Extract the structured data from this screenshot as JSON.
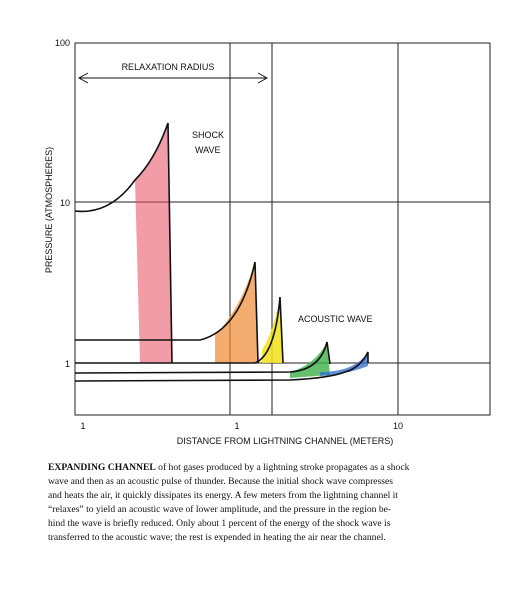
{
  "figure": {
    "y_label": "PRESSURE (ATMOSPHERES)",
    "x_label": "DISTANCE FROM LIGHTNING CHANNEL (METERS)",
    "y_tick_labels": [
      "100",
      "10",
      "1"
    ],
    "x_tick_labels": [
      "1",
      "1",
      "10"
    ],
    "annotations": {
      "relaxation": "RELAXATION RADIUS",
      "shock_1": "SHOCK",
      "shock_2": "WAVE",
      "acoustic": "ACOUSTIC WAVE"
    }
  },
  "caption": {
    "lead": "EXPANDING CHANNEL",
    "lines": [
      " of hot gases produced by a lightning stroke propagates as a shock",
      "wave and then as an acoustic pulse of thunder. Because the initial shock wave compresses",
      "and heats the air, it quickly dissipates its energy. A few meters from the lightning channel it",
      "“relaxes” to yield an acoustic wave of lower amplitude, and the pressure in the region be-",
      "hind the wave is briefly reduced. Only about 1 percent of the energy of the shock wave is",
      "transferred to the acoustic wave; the rest is expended in heating the air near the channel."
    ]
  }
}
